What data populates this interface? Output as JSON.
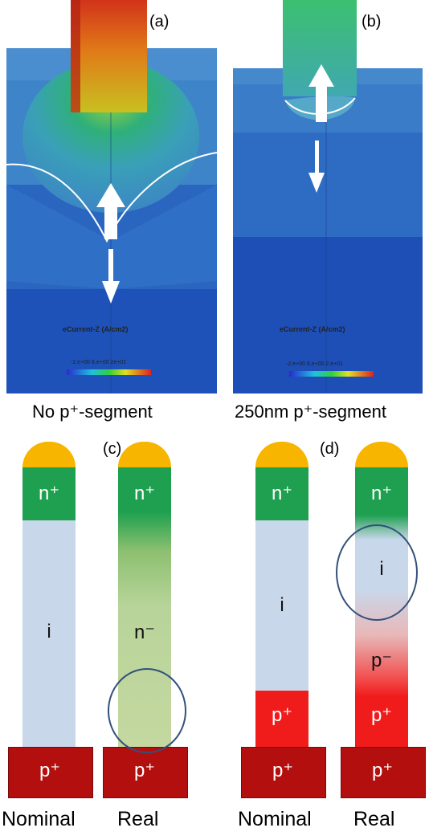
{
  "panels": {
    "a": {
      "label": "(a)",
      "caption": "No p⁺-segment",
      "legend_title": "eCurrent-Z (A/cm2)",
      "legend_ticks": "-2.e+00  8.e+00  2e+01"
    },
    "b": {
      "label": "(b)",
      "caption": "250nm p⁺-segment",
      "legend_title": "eCurrent-Z (A/cm2)",
      "legend_ticks": "-2.e+00 8.e+00  2.e+01"
    },
    "c": {
      "label": "(c)",
      "nominal": {
        "top": "n⁺",
        "mid": "i",
        "base": "p⁺",
        "caption": "Nominal"
      },
      "real": {
        "top": "n⁺",
        "mid": "n⁻",
        "base": "p⁺",
        "caption": "Real"
      }
    },
    "d": {
      "label": "(d)",
      "nominal": {
        "top": "n⁺",
        "mid": "i",
        "lower": "p⁺",
        "base": "p⁺",
        "caption": "Nominal"
      },
      "real": {
        "top": "n⁺",
        "mid": "i",
        "lower1": "p⁻",
        "lower2": "p⁺",
        "base": "p⁺",
        "caption": "Real"
      }
    }
  },
  "colors": {
    "cap": "#f7b500",
    "n_plus": "#1fa050",
    "intrinsic": "#c9d7ea",
    "p_plus": "#f01c1c",
    "base": "#b30f0f"
  }
}
